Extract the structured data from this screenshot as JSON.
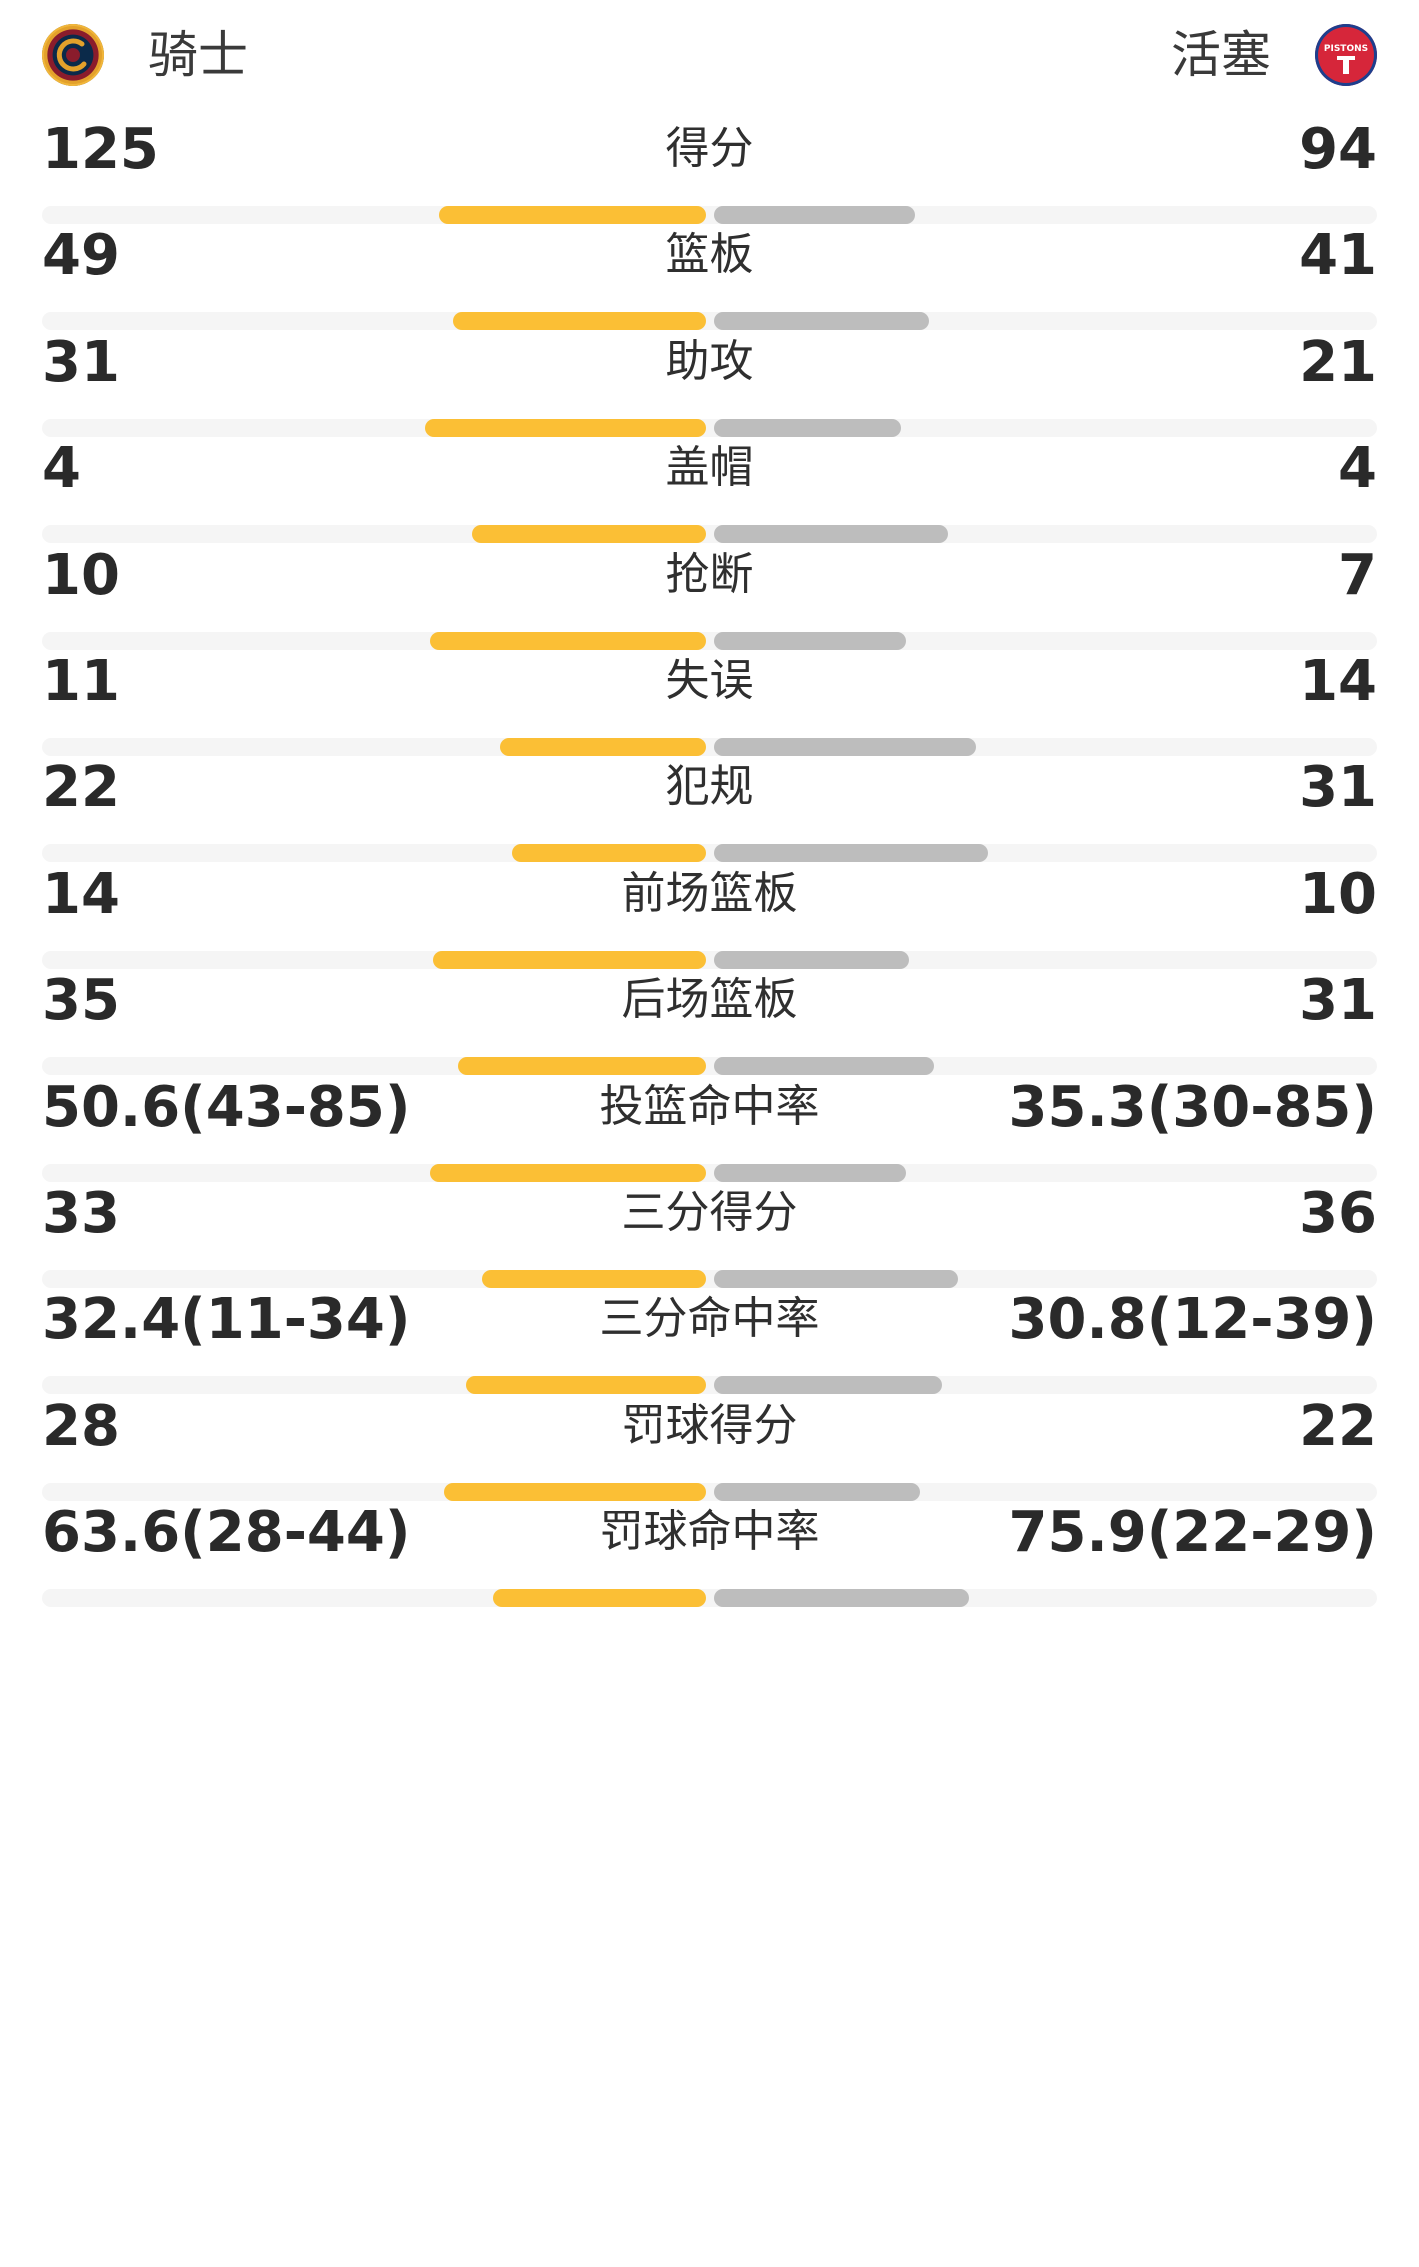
{
  "header": {
    "home_team": "骑士",
    "away_team": "活塞",
    "home_logo_icon": "cavaliers-logo-icon",
    "away_logo_icon": "pistons-logo-icon",
    "away_logo_text": "PISTONS"
  },
  "colors": {
    "home_bar": "#fbbf35",
    "away_bar": "#bdbdbd",
    "track": "#f5f5f5"
  },
  "stats": [
    {
      "label": "得分",
      "home": "125",
      "away": "94",
      "home_share": 0.57,
      "away_share": 0.43
    },
    {
      "label": "篮板",
      "home": "49",
      "away": "41",
      "home_share": 0.54,
      "away_share": 0.46
    },
    {
      "label": "助攻",
      "home": "31",
      "away": "21",
      "home_share": 0.6,
      "away_share": 0.4
    },
    {
      "label": "盖帽",
      "home": "4",
      "away": "4",
      "home_share": 0.5,
      "away_share": 0.5
    },
    {
      "label": "抢断",
      "home": "10",
      "away": "7",
      "home_share": 0.59,
      "away_share": 0.41
    },
    {
      "label": "失误",
      "home": "11",
      "away": "14",
      "home_share": 0.44,
      "away_share": 0.56
    },
    {
      "label": "犯规",
      "home": "22",
      "away": "31",
      "home_share": 0.415,
      "away_share": 0.585
    },
    {
      "label": "前场篮板",
      "home": "14",
      "away": "10",
      "home_share": 0.583,
      "away_share": 0.417
    },
    {
      "label": "后场篮板",
      "home": "35",
      "away": "31",
      "home_share": 0.53,
      "away_share": 0.47
    },
    {
      "label": "投篮命中率",
      "home": "50.6(43-85)",
      "away": "35.3(30-85)",
      "home_share": 0.59,
      "away_share": 0.41
    },
    {
      "label": "三分得分",
      "home": "33",
      "away": "36",
      "home_share": 0.478,
      "away_share": 0.522
    },
    {
      "label": "三分命中率",
      "home": "32.4(11-34)",
      "away": "30.8(12-39)",
      "home_share": 0.513,
      "away_share": 0.487
    },
    {
      "label": "罚球得分",
      "home": "28",
      "away": "22",
      "home_share": 0.56,
      "away_share": 0.44
    },
    {
      "label": "罚球命中率",
      "home": "63.6(28-44)",
      "away": "75.9(22-29)",
      "home_share": 0.456,
      "away_share": 0.544
    }
  ]
}
